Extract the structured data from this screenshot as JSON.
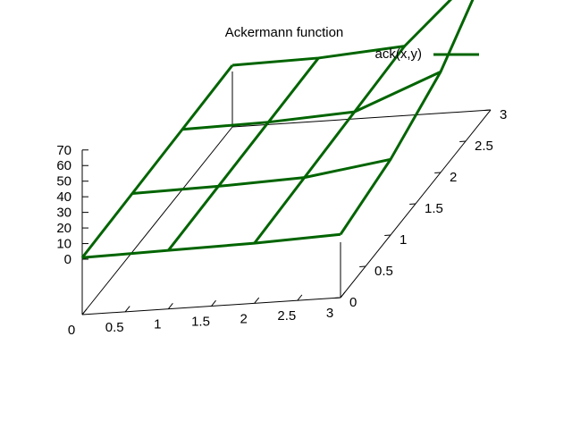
{
  "chart_data": {
    "type": "surface-3d-wireframe",
    "title": "Ackermann function",
    "legend": {
      "label": "ack(x,y)",
      "position": "top-right",
      "color": "#006400"
    },
    "x": [
      0,
      1,
      2,
      3
    ],
    "y": [
      0,
      1,
      2,
      3
    ],
    "z": [
      [
        1,
        2,
        3,
        4
      ],
      [
        2,
        3,
        4,
        5
      ],
      [
        3,
        5,
        7,
        9
      ],
      [
        5,
        13,
        29,
        61
      ]
    ],
    "xlim": [
      0,
      3
    ],
    "ylim": [
      0,
      3
    ],
    "zlim": [
      0,
      70
    ],
    "xticks": [
      "0",
      "0.5",
      "1",
      "1.5",
      "2",
      "2.5",
      "3"
    ],
    "yticks": [
      "0",
      "0.5",
      "1",
      "1.5",
      "2",
      "2.5",
      "3"
    ],
    "zticks": [
      "0",
      "10",
      "20",
      "30",
      "40",
      "50",
      "60",
      "70"
    ],
    "grid": false,
    "line_color": "#006400",
    "axis_color": "#000000"
  }
}
